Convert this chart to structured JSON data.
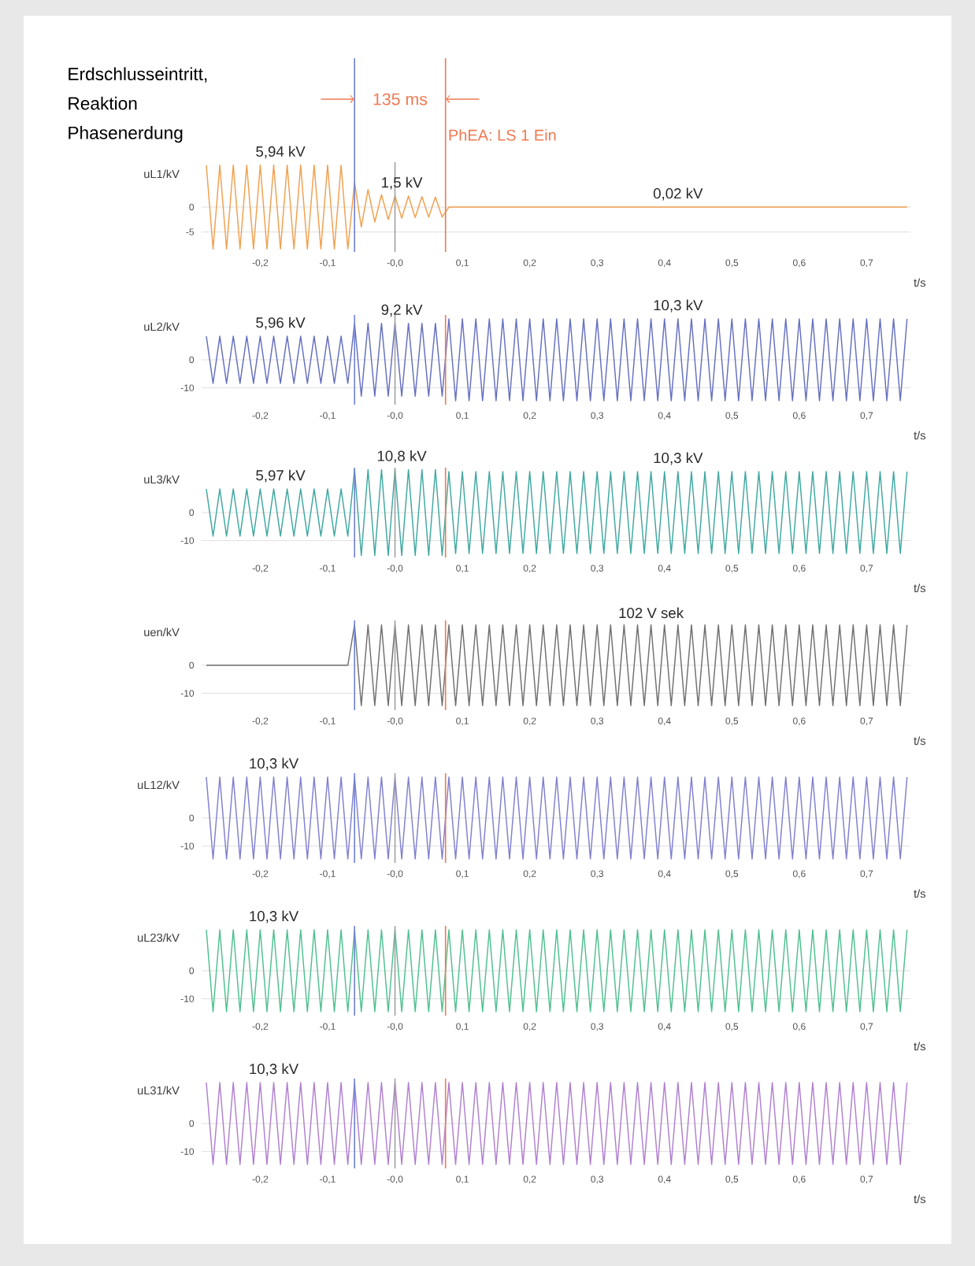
{
  "chart_data": [
    {
      "type": "line",
      "title": "Erdschlusseintritt, Reaktion Phasenerdung",
      "ylabel": "uL1/kV",
      "xlabel": "t/s",
      "xlim": [
        -0.287,
        0.765
      ],
      "ylim": [
        -9,
        9
      ],
      "yticks": [
        -5,
        0
      ],
      "grid": "y",
      "marker": "none",
      "line_style": "solid",
      "xticks": [
        {
          "value": -0.2,
          "label": "-0,2"
        },
        {
          "value": -0.1,
          "label": "-0,1"
        },
        {
          "value": 0,
          "label": "-0,0"
        },
        {
          "value": 0.1,
          "label": "0,1"
        },
        {
          "value": 0.2,
          "label": "0,2"
        },
        {
          "value": 0.3,
          "label": "0,3"
        },
        {
          "value": 0.4,
          "label": "0,4"
        },
        {
          "value": 0.5,
          "label": "0,5"
        },
        {
          "value": 0.6,
          "label": "0,6"
        },
        {
          "value": 0.7,
          "label": "0,7"
        }
      ],
      "series": [
        {
          "color": "#f0a050",
          "x": [
            -0.28,
            -0.27,
            -0.26,
            -0.25,
            -0.24,
            -0.23,
            -0.22,
            -0.21,
            -0.2,
            -0.19,
            -0.18,
            -0.17,
            -0.16,
            -0.15,
            -0.14,
            -0.13,
            -0.12,
            -0.11,
            -0.1,
            -0.09,
            -0.08,
            -0.07,
            -0.06,
            -0.05,
            -0.04,
            -0.03,
            -0.02,
            -0.01,
            0,
            0.01,
            0.02,
            0.03,
            0.04,
            0.05,
            0.06,
            0.07,
            0.08,
            0.76
          ],
          "values": [
            8.4,
            -8.4,
            8.4,
            -8.4,
            8.4,
            -8.4,
            8.4,
            -8.4,
            8.4,
            -8.4,
            8.4,
            -8.4,
            8.4,
            -8.4,
            8.4,
            -8.4,
            8.4,
            -8.4,
            8.4,
            -8.4,
            8.4,
            -8.4,
            5,
            -4,
            3.5,
            -3,
            2.5,
            -2.5,
            2.2,
            -2.2,
            2.2,
            -2.1,
            2.1,
            -2,
            2,
            -2,
            0,
            0
          ]
        }
      ],
      "ref_lines": [
        {
          "axis": "x",
          "value": -0.06,
          "color": "#7080d0"
        },
        {
          "axis": "x",
          "value": 0,
          "color": "#a0a0a0"
        },
        {
          "axis": "x",
          "value": 0.075,
          "color": "#f07850",
          "label": "PhEA: LS 1 Ein"
        }
      ],
      "annotations": [
        {
          "text": "5,94 kV",
          "x": -0.17,
          "y": 8.4
        },
        {
          "text": "1,5 kV",
          "x": 0.01,
          "y": 2.2
        },
        {
          "text": "0,02 kV",
          "x": 0.42,
          "y": 0
        },
        "135 ms"
      ]
    },
    {
      "type": "line",
      "ylabel": "uL2/kV",
      "xlabel": "t/s",
      "xlim": [
        -0.287,
        0.765
      ],
      "ylim": [
        -16,
        16
      ],
      "yticks": [
        -10,
        0
      ],
      "grid": "y",
      "marker": "none",
      "line_style": "solid",
      "xticks": [
        {
          "value": -0.2,
          "label": "-0,2"
        },
        {
          "value": -0.1,
          "label": "-0,1"
        },
        {
          "value": 0,
          "label": "-0,0"
        },
        {
          "value": 0.1,
          "label": "0,1"
        },
        {
          "value": 0.2,
          "label": "0,2"
        },
        {
          "value": 0.3,
          "label": "0,3"
        },
        {
          "value": 0.4,
          "label": "0,4"
        },
        {
          "value": 0.5,
          "label": "0,5"
        },
        {
          "value": 0.6,
          "label": "0,6"
        },
        {
          "value": 0.7,
          "label": "0,7"
        }
      ],
      "series": [
        {
          "color": "#6670c0",
          "x": [
            -0.28,
            -0.27,
            -0.26,
            -0.25,
            -0.24,
            -0.23,
            -0.22,
            -0.21,
            -0.2,
            -0.19,
            -0.18,
            -0.17,
            -0.16,
            -0.15,
            -0.14,
            -0.13,
            -0.12,
            -0.11,
            -0.1,
            -0.09,
            -0.08,
            -0.07,
            -0.06,
            -0.05,
            -0.04,
            -0.03,
            -0.02,
            -0.01,
            0,
            0.01,
            0.02,
            0.03,
            0.04,
            0.05,
            0.06,
            0.07,
            0.08,
            0.09,
            0.1,
            0.11,
            0.12,
            0.13,
            0.14,
            0.15,
            0.16,
            0.17,
            0.18,
            0.19,
            0.2,
            0.21,
            0.22,
            0.23,
            0.24,
            0.25,
            0.26,
            0.27,
            0.28,
            0.29,
            0.3,
            0.31,
            0.32,
            0.33,
            0.34,
            0.35,
            0.36,
            0.37,
            0.38,
            0.39,
            0.4,
            0.41,
            0.42,
            0.43,
            0.44,
            0.45,
            0.46,
            0.47,
            0.48,
            0.49,
            0.5,
            0.51,
            0.52,
            0.53,
            0.54,
            0.55,
            0.56,
            0.57,
            0.58,
            0.59,
            0.6,
            0.61,
            0.62,
            0.63,
            0.64,
            0.65,
            0.66,
            0.67,
            0.68,
            0.69,
            0.7,
            0.71,
            0.72,
            0.73,
            0.74,
            0.75,
            0.76
          ],
          "values": [
            8.4,
            -8.4,
            8.4,
            -8.4,
            8.4,
            -8.4,
            8.4,
            -8.4,
            8.4,
            -8.4,
            8.4,
            -8.4,
            8.4,
            -8.4,
            8.4,
            -8.4,
            8.4,
            -8.4,
            8.4,
            -8.4,
            8.4,
            -8.4,
            13,
            -13,
            13,
            -13,
            13,
            -13,
            13,
            -13,
            13,
            -13,
            13,
            -13,
            13,
            -13,
            14.6,
            -14.6,
            14.6,
            -14.6,
            14.6,
            -14.6,
            14.6,
            -14.6,
            14.6,
            -14.6,
            14.6,
            -14.6,
            14.6,
            -14.6,
            14.6,
            -14.6,
            14.6,
            -14.6,
            14.6,
            -14.6,
            14.6,
            -14.6,
            14.6,
            -14.6,
            14.6,
            -14.6,
            14.6,
            -14.6,
            14.6,
            -14.6,
            14.6,
            -14.6,
            14.6,
            -14.6,
            14.6,
            -14.6,
            14.6,
            -14.6,
            14.6,
            -14.6,
            14.6,
            -14.6,
            14.6,
            -14.6,
            14.6,
            -14.6,
            14.6,
            -14.6,
            14.6,
            -14.6,
            14.6,
            -14.6,
            14.6,
            -14.6,
            14.6,
            -14.6,
            14.6,
            -14.6,
            14.6,
            -14.6,
            14.6,
            -14.6,
            14.6,
            -14.6,
            14.6,
            -14.6,
            14.6,
            -14.6,
            14.6
          ]
        }
      ],
      "ref_lines": [
        {
          "axis": "x",
          "value": -0.06,
          "color": "#7080d0"
        },
        {
          "axis": "x",
          "value": 0,
          "color": "#a0a0a0"
        },
        {
          "axis": "x",
          "value": 0.075,
          "color": "#f07850"
        }
      ],
      "annotations": [
        {
          "text": "5,96 kV",
          "x": -0.17,
          "y": 8.4
        },
        {
          "text": "9,2 kV",
          "x": 0.01,
          "y": 13
        },
        {
          "text": "10,3 kV",
          "x": 0.42,
          "y": 14.6
        }
      ]
    },
    {
      "type": "line",
      "ylabel": "uL3/kV",
      "xlabel": "t/s",
      "xlim": [
        -0.287,
        0.765
      ],
      "ylim": [
        -16,
        16
      ],
      "yticks": [
        -10,
        0
      ],
      "grid": "y",
      "marker": "none",
      "line_style": "solid",
      "xticks": [
        {
          "value": -0.2,
          "label": "-0,2"
        },
        {
          "value": -0.1,
          "label": "-0,1"
        },
        {
          "value": 0,
          "label": "-0,0"
        },
        {
          "value": 0.1,
          "label": "0,1"
        },
        {
          "value": 0.2,
          "label": "0,2"
        },
        {
          "value": 0.3,
          "label": "0,3"
        },
        {
          "value": 0.4,
          "label": "0,4"
        },
        {
          "value": 0.5,
          "label": "0,5"
        },
        {
          "value": 0.6,
          "label": "0,6"
        },
        {
          "value": 0.7,
          "label": "0,7"
        }
      ],
      "series": [
        {
          "color": "#40a8a0",
          "x": [
            -0.28,
            -0.27,
            -0.26,
            -0.25,
            -0.24,
            -0.23,
            -0.22,
            -0.21,
            -0.2,
            -0.19,
            -0.18,
            -0.17,
            -0.16,
            -0.15,
            -0.14,
            -0.13,
            -0.12,
            -0.11,
            -0.1,
            -0.09,
            -0.08,
            -0.07,
            -0.06,
            -0.05,
            -0.04,
            -0.03,
            -0.02,
            -0.01,
            0,
            0.01,
            0.02,
            0.03,
            0.04,
            0.05,
            0.06,
            0.07,
            0.08,
            0.09,
            0.1,
            0.11,
            0.12,
            0.13,
            0.14,
            0.15,
            0.16,
            0.17,
            0.18,
            0.19,
            0.2,
            0.21,
            0.22,
            0.23,
            0.24,
            0.25,
            0.26,
            0.27,
            0.28,
            0.29,
            0.3,
            0.31,
            0.32,
            0.33,
            0.34,
            0.35,
            0.36,
            0.37,
            0.38,
            0.39,
            0.4,
            0.41,
            0.42,
            0.43,
            0.44,
            0.45,
            0.46,
            0.47,
            0.48,
            0.49,
            0.5,
            0.51,
            0.52,
            0.53,
            0.54,
            0.55,
            0.56,
            0.57,
            0.58,
            0.59,
            0.6,
            0.61,
            0.62,
            0.63,
            0.64,
            0.65,
            0.66,
            0.67,
            0.68,
            0.69,
            0.7,
            0.71,
            0.72,
            0.73,
            0.74,
            0.75,
            0.76
          ],
          "values": [
            8.4,
            -8.4,
            8.4,
            -8.4,
            8.4,
            -8.4,
            8.4,
            -8.4,
            8.4,
            -8.4,
            8.4,
            -8.4,
            8.4,
            -8.4,
            8.4,
            -8.4,
            8.4,
            -8.4,
            8.4,
            -8.4,
            8.4,
            -8.4,
            15.3,
            -15.3,
            15.3,
            -15.3,
            15.3,
            -15.3,
            15.3,
            -15.3,
            15.3,
            -15.3,
            15.3,
            -15.3,
            15.3,
            -15.3,
            14.6,
            -14.6,
            14.6,
            -14.6,
            14.6,
            -14.6,
            14.6,
            -14.6,
            14.6,
            -14.6,
            14.6,
            -14.6,
            14.6,
            -14.6,
            14.6,
            -14.6,
            14.6,
            -14.6,
            14.6,
            -14.6,
            14.6,
            -14.6,
            14.6,
            -14.6,
            14.6,
            -14.6,
            14.6,
            -14.6,
            14.6,
            -14.6,
            14.6,
            -14.6,
            14.6,
            -14.6,
            14.6,
            -14.6,
            14.6,
            -14.6,
            14.6,
            -14.6,
            14.6,
            -14.6,
            14.6,
            -14.6,
            14.6,
            -14.6,
            14.6,
            -14.6,
            14.6,
            -14.6,
            14.6,
            -14.6,
            14.6,
            -14.6,
            14.6,
            -14.6,
            14.6,
            -14.6,
            14.6,
            -14.6,
            14.6,
            -14.6,
            14.6,
            -14.6,
            14.6,
            -14.6,
            14.6,
            -14.6,
            14.6
          ]
        }
      ],
      "ref_lines": [
        {
          "axis": "x",
          "value": -0.06,
          "color": "#7080d0"
        },
        {
          "axis": "x",
          "value": 0,
          "color": "#a0a0a0"
        },
        {
          "axis": "x",
          "value": 0.075,
          "color": "#f07850"
        }
      ],
      "annotations": [
        {
          "text": "5,97 kV",
          "x": -0.17,
          "y": 8.4
        },
        {
          "text": "10,8 kV",
          "x": 0.01,
          "y": 15.3
        },
        {
          "text": "10,3 kV",
          "x": 0.42,
          "y": 14.6
        }
      ]
    },
    {
      "type": "line",
      "ylabel": "uen/kV",
      "xlabel": "t/s",
      "xlim": [
        -0.287,
        0.765
      ],
      "ylim": [
        -16,
        16
      ],
      "yticks": [
        -10,
        0
      ],
      "grid": "y",
      "marker": "none",
      "line_style": "solid",
      "xticks": [
        {
          "value": -0.2,
          "label": "-0,2"
        },
        {
          "value": -0.1,
          "label": "-0,1"
        },
        {
          "value": 0,
          "label": "-0,0"
        },
        {
          "value": 0.1,
          "label": "0,1"
        },
        {
          "value": 0.2,
          "label": "0,2"
        },
        {
          "value": 0.3,
          "label": "0,3"
        },
        {
          "value": 0.4,
          "label": "0,4"
        },
        {
          "value": 0.5,
          "label": "0,5"
        },
        {
          "value": 0.6,
          "label": "0,6"
        },
        {
          "value": 0.7,
          "label": "0,7"
        }
      ],
      "series": [
        {
          "color": "#707070",
          "x": [
            -0.28,
            -0.07,
            -0.06,
            -0.05,
            -0.04,
            -0.03,
            -0.02,
            -0.01,
            0,
            0.01,
            0.02,
            0.03,
            0.04,
            0.05,
            0.06,
            0.07,
            0.08,
            0.09,
            0.1,
            0.11,
            0.12,
            0.13,
            0.14,
            0.15,
            0.16,
            0.17,
            0.18,
            0.19,
            0.2,
            0.21,
            0.22,
            0.23,
            0.24,
            0.25,
            0.26,
            0.27,
            0.28,
            0.29,
            0.3,
            0.31,
            0.32,
            0.33,
            0.34,
            0.35,
            0.36,
            0.37,
            0.38,
            0.39,
            0.4,
            0.41,
            0.42,
            0.43,
            0.44,
            0.45,
            0.46,
            0.47,
            0.48,
            0.49,
            0.5,
            0.51,
            0.52,
            0.53,
            0.54,
            0.55,
            0.56,
            0.57,
            0.58,
            0.59,
            0.6,
            0.61,
            0.62,
            0.63,
            0.64,
            0.65,
            0.66,
            0.67,
            0.68,
            0.69,
            0.7,
            0.71,
            0.72,
            0.73,
            0.74,
            0.75,
            0.76
          ],
          "values": [
            0,
            0,
            14.4,
            -14.4,
            14.4,
            -14.4,
            14.4,
            -14.4,
            14.4,
            -14.4,
            14.4,
            -14.4,
            14.4,
            -14.4,
            14.4,
            -14.4,
            14.4,
            -14.4,
            14.4,
            -14.4,
            14.4,
            -14.4,
            14.4,
            -14.4,
            14.4,
            -14.4,
            14.4,
            -14.4,
            14.4,
            -14.4,
            14.4,
            -14.4,
            14.4,
            -14.4,
            14.4,
            -14.4,
            14.4,
            -14.4,
            14.4,
            -14.4,
            14.4,
            -14.4,
            14.4,
            -14.4,
            14.4,
            -14.4,
            14.4,
            -14.4,
            14.4,
            -14.4,
            14.4,
            -14.4,
            14.4,
            -14.4,
            14.4,
            -14.4,
            14.4,
            -14.4,
            14.4,
            -14.4,
            14.4,
            -14.4,
            14.4,
            -14.4,
            14.4,
            -14.4,
            14.4,
            -14.4,
            14.4,
            -14.4,
            14.4,
            -14.4,
            14.4,
            -14.4,
            14.4,
            -14.4,
            14.4,
            -14.4,
            14.4,
            -14.4,
            14.4,
            -14.4,
            14.4,
            -14.4,
            14.4
          ]
        }
      ],
      "ref_lines": [
        {
          "axis": "x",
          "value": -0.06,
          "color": "#7080d0"
        },
        {
          "axis": "x",
          "value": 0,
          "color": "#a0a0a0"
        },
        {
          "axis": "x",
          "value": 0.075,
          "color": "#f07850"
        }
      ],
      "annotations": [
        {
          "text": "102 V sek",
          "x": 0.38,
          "y": 14.4
        }
      ]
    },
    {
      "type": "line",
      "ylabel": "uL12/kV",
      "xlabel": "t/s",
      "xlim": [
        -0.287,
        0.765
      ],
      "ylim": [
        -16,
        16
      ],
      "yticks": [
        -10,
        0
      ],
      "grid": "y",
      "marker": "none",
      "line_style": "solid",
      "xticks": [
        {
          "value": -0.2,
          "label": "-0,2"
        },
        {
          "value": -0.1,
          "label": "-0,1"
        },
        {
          "value": 0,
          "label": "-0,0"
        },
        {
          "value": 0.1,
          "label": "0,1"
        },
        {
          "value": 0.2,
          "label": "0,2"
        },
        {
          "value": 0.3,
          "label": "0,3"
        },
        {
          "value": 0.4,
          "label": "0,4"
        },
        {
          "value": 0.5,
          "label": "0,5"
        },
        {
          "value": 0.6,
          "label": "0,6"
        },
        {
          "value": 0.7,
          "label": "0,7"
        }
      ],
      "series": [
        {
          "color": "#8080d0",
          "x": [
            -0.28,
            -0.27,
            -0.26,
            -0.25,
            -0.24,
            -0.23,
            -0.22,
            -0.21,
            -0.2,
            -0.19,
            -0.18,
            -0.17,
            -0.16,
            -0.15,
            -0.14,
            -0.13,
            -0.12,
            -0.11,
            -0.1,
            -0.09,
            -0.08,
            -0.07,
            -0.06,
            -0.05,
            -0.04,
            -0.03,
            -0.02,
            -0.01,
            0,
            0.01,
            0.02,
            0.03,
            0.04,
            0.05,
            0.06,
            0.07,
            0.08,
            0.09,
            0.1,
            0.11,
            0.12,
            0.13,
            0.14,
            0.15,
            0.16,
            0.17,
            0.18,
            0.19,
            0.2,
            0.21,
            0.22,
            0.23,
            0.24,
            0.25,
            0.26,
            0.27,
            0.28,
            0.29,
            0.3,
            0.31,
            0.32,
            0.33,
            0.34,
            0.35,
            0.36,
            0.37,
            0.38,
            0.39,
            0.4,
            0.41,
            0.42,
            0.43,
            0.44,
            0.45,
            0.46,
            0.47,
            0.48,
            0.49,
            0.5,
            0.51,
            0.52,
            0.53,
            0.54,
            0.55,
            0.56,
            0.57,
            0.58,
            0.59,
            0.6,
            0.61,
            0.62,
            0.63,
            0.64,
            0.65,
            0.66,
            0.67,
            0.68,
            0.69,
            0.7,
            0.71,
            0.72,
            0.73,
            0.74,
            0.75,
            0.76
          ],
          "values": [
            14.6,
            -14.6,
            14.6,
            -14.6,
            14.6,
            -14.6,
            14.6,
            -14.6,
            14.6,
            -14.6,
            14.6,
            -14.6,
            14.6,
            -14.6,
            14.6,
            -14.6,
            14.6,
            -14.6,
            14.6,
            -14.6,
            14.6,
            -14.6,
            14.6,
            -14.6,
            14.6,
            -14.6,
            14.6,
            -14.6,
            14.6,
            -14.6,
            14.6,
            -14.6,
            14.6,
            -14.6,
            14.6,
            -14.6,
            14.6,
            -14.6,
            14.6,
            -14.6,
            14.6,
            -14.6,
            14.6,
            -14.6,
            14.6,
            -14.6,
            14.6,
            -14.6,
            14.6,
            -14.6,
            14.6,
            -14.6,
            14.6,
            -14.6,
            14.6,
            -14.6,
            14.6,
            -14.6,
            14.6,
            -14.6,
            14.6,
            -14.6,
            14.6,
            -14.6,
            14.6,
            -14.6,
            14.6,
            -14.6,
            14.6,
            -14.6,
            14.6,
            -14.6,
            14.6,
            -14.6,
            14.6,
            -14.6,
            14.6,
            -14.6,
            14.6,
            -14.6,
            14.6,
            -14.6,
            14.6,
            -14.6,
            14.6,
            -14.6,
            14.6,
            -14.6,
            14.6,
            -14.6,
            14.6,
            -14.6,
            14.6,
            -14.6,
            14.6,
            -14.6,
            14.6,
            -14.6,
            14.6,
            -14.6,
            14.6,
            -14.6,
            14.6,
            -14.6,
            14.6
          ]
        }
      ],
      "ref_lines": [
        {
          "axis": "x",
          "value": -0.06,
          "color": "#7080d0"
        },
        {
          "axis": "x",
          "value": 0,
          "color": "#a0a0a0"
        },
        {
          "axis": "x",
          "value": 0.075,
          "color": "#f07850"
        }
      ],
      "annotations": [
        {
          "text": "10,3 kV",
          "x": -0.18,
          "y": 14.6
        }
      ]
    },
    {
      "type": "line",
      "ylabel": "uL23/kV",
      "xlabel": "t/s",
      "xlim": [
        -0.287,
        0.765
      ],
      "ylim": [
        -16,
        16
      ],
      "yticks": [
        -10,
        0
      ],
      "grid": "y",
      "marker": "none",
      "line_style": "solid",
      "xticks": [
        {
          "value": -0.2,
          "label": "-0,2"
        },
        {
          "value": -0.1,
          "label": "-0,1"
        },
        {
          "value": 0,
          "label": "-0,0"
        },
        {
          "value": 0.1,
          "label": "0,1"
        },
        {
          "value": 0.2,
          "label": "0,2"
        },
        {
          "value": 0.3,
          "label": "0,3"
        },
        {
          "value": 0.4,
          "label": "0,4"
        },
        {
          "value": 0.5,
          "label": "0,5"
        },
        {
          "value": 0.6,
          "label": "0,6"
        },
        {
          "value": 0.7,
          "label": "0,7"
        }
      ],
      "series": [
        {
          "color": "#50c090",
          "x": [
            -0.28,
            -0.27,
            -0.26,
            -0.25,
            -0.24,
            -0.23,
            -0.22,
            -0.21,
            -0.2,
            -0.19,
            -0.18,
            -0.17,
            -0.16,
            -0.15,
            -0.14,
            -0.13,
            -0.12,
            -0.11,
            -0.1,
            -0.09,
            -0.08,
            -0.07,
            -0.06,
            -0.05,
            -0.04,
            -0.03,
            -0.02,
            -0.01,
            0,
            0.01,
            0.02,
            0.03,
            0.04,
            0.05,
            0.06,
            0.07,
            0.08,
            0.09,
            0.1,
            0.11,
            0.12,
            0.13,
            0.14,
            0.15,
            0.16,
            0.17,
            0.18,
            0.19,
            0.2,
            0.21,
            0.22,
            0.23,
            0.24,
            0.25,
            0.26,
            0.27,
            0.28,
            0.29,
            0.3,
            0.31,
            0.32,
            0.33,
            0.34,
            0.35,
            0.36,
            0.37,
            0.38,
            0.39,
            0.4,
            0.41,
            0.42,
            0.43,
            0.44,
            0.45,
            0.46,
            0.47,
            0.48,
            0.49,
            0.5,
            0.51,
            0.52,
            0.53,
            0.54,
            0.55,
            0.56,
            0.57,
            0.58,
            0.59,
            0.6,
            0.61,
            0.62,
            0.63,
            0.64,
            0.65,
            0.66,
            0.67,
            0.68,
            0.69,
            0.7,
            0.71,
            0.72,
            0.73,
            0.74,
            0.75,
            0.76
          ],
          "values": [
            14.6,
            -14.6,
            14.6,
            -14.6,
            14.6,
            -14.6,
            14.6,
            -14.6,
            14.6,
            -14.6,
            14.6,
            -14.6,
            14.6,
            -14.6,
            14.6,
            -14.6,
            14.6,
            -14.6,
            14.6,
            -14.6,
            14.6,
            -14.6,
            14.6,
            -14.6,
            14.6,
            -14.6,
            14.6,
            -14.6,
            14.6,
            -14.6,
            14.6,
            -14.6,
            14.6,
            -14.6,
            14.6,
            -14.6,
            14.6,
            -14.6,
            14.6,
            -14.6,
            14.6,
            -14.6,
            14.6,
            -14.6,
            14.6,
            -14.6,
            14.6,
            -14.6,
            14.6,
            -14.6,
            14.6,
            -14.6,
            14.6,
            -14.6,
            14.6,
            -14.6,
            14.6,
            -14.6,
            14.6,
            -14.6,
            14.6,
            -14.6,
            14.6,
            -14.6,
            14.6,
            -14.6,
            14.6,
            -14.6,
            14.6,
            -14.6,
            14.6,
            -14.6,
            14.6,
            -14.6,
            14.6,
            -14.6,
            14.6,
            -14.6,
            14.6,
            -14.6,
            14.6,
            -14.6,
            14.6,
            -14.6,
            14.6,
            -14.6,
            14.6,
            -14.6,
            14.6,
            -14.6,
            14.6,
            -14.6,
            14.6,
            -14.6,
            14.6,
            -14.6,
            14.6,
            -14.6,
            14.6,
            -14.6,
            14.6,
            -14.6,
            14.6,
            -14.6,
            14.6
          ]
        }
      ],
      "ref_lines": [
        {
          "axis": "x",
          "value": -0.06,
          "color": "#7080d0"
        },
        {
          "axis": "x",
          "value": 0,
          "color": "#a0a0a0"
        },
        {
          "axis": "x",
          "value": 0.075,
          "color": "#f07850"
        }
      ],
      "annotations": [
        {
          "text": "10,3 kV",
          "x": -0.18,
          "y": 14.6
        }
      ]
    },
    {
      "type": "line",
      "ylabel": "uL31/kV",
      "xlabel": "t/s",
      "xlim": [
        -0.287,
        0.765
      ],
      "ylim": [
        -16,
        16
      ],
      "yticks": [
        -10,
        0
      ],
      "grid": "y",
      "marker": "none",
      "line_style": "solid",
      "xticks": [
        {
          "value": -0.2,
          "label": "-0,2"
        },
        {
          "value": -0.1,
          "label": "-0,1"
        },
        {
          "value": 0,
          "label": "-0,0"
        },
        {
          "value": 0.1,
          "label": "0,1"
        },
        {
          "value": 0.2,
          "label": "0,2"
        },
        {
          "value": 0.3,
          "label": "0,3"
        },
        {
          "value": 0.4,
          "label": "0,4"
        },
        {
          "value": 0.5,
          "label": "0,5"
        },
        {
          "value": 0.6,
          "label": "0,6"
        },
        {
          "value": 0.7,
          "label": "0,7"
        }
      ],
      "series": [
        {
          "color": "#b080d0",
          "x": [
            -0.28,
            -0.27,
            -0.26,
            -0.25,
            -0.24,
            -0.23,
            -0.22,
            -0.21,
            -0.2,
            -0.19,
            -0.18,
            -0.17,
            -0.16,
            -0.15,
            -0.14,
            -0.13,
            -0.12,
            -0.11,
            -0.1,
            -0.09,
            -0.08,
            -0.07,
            -0.06,
            -0.05,
            -0.04,
            -0.03,
            -0.02,
            -0.01,
            0,
            0.01,
            0.02,
            0.03,
            0.04,
            0.05,
            0.06,
            0.07,
            0.08,
            0.09,
            0.1,
            0.11,
            0.12,
            0.13,
            0.14,
            0.15,
            0.16,
            0.17,
            0.18,
            0.19,
            0.2,
            0.21,
            0.22,
            0.23,
            0.24,
            0.25,
            0.26,
            0.27,
            0.28,
            0.29,
            0.3,
            0.31,
            0.32,
            0.33,
            0.34,
            0.35,
            0.36,
            0.37,
            0.38,
            0.39,
            0.4,
            0.41,
            0.42,
            0.43,
            0.44,
            0.45,
            0.46,
            0.47,
            0.48,
            0.49,
            0.5,
            0.51,
            0.52,
            0.53,
            0.54,
            0.55,
            0.56,
            0.57,
            0.58,
            0.59,
            0.6,
            0.61,
            0.62,
            0.63,
            0.64,
            0.65,
            0.66,
            0.67,
            0.68,
            0.69,
            0.7,
            0.71,
            0.72,
            0.73,
            0.74,
            0.75,
            0.76
          ],
          "values": [
            14.6,
            -14.6,
            14.6,
            -14.6,
            14.6,
            -14.6,
            14.6,
            -14.6,
            14.6,
            -14.6,
            14.6,
            -14.6,
            14.6,
            -14.6,
            14.6,
            -14.6,
            14.6,
            -14.6,
            14.6,
            -14.6,
            14.6,
            -14.6,
            14.6,
            -14.6,
            14.6,
            -14.6,
            14.6,
            -14.6,
            14.6,
            -14.6,
            14.6,
            -14.6,
            14.6,
            -14.6,
            14.6,
            -14.6,
            14.6,
            -14.6,
            14.6,
            -14.6,
            14.6,
            -14.6,
            14.6,
            -14.6,
            14.6,
            -14.6,
            14.6,
            -14.6,
            14.6,
            -14.6,
            14.6,
            -14.6,
            14.6,
            -14.6,
            14.6,
            -14.6,
            14.6,
            -14.6,
            14.6,
            -14.6,
            14.6,
            -14.6,
            14.6,
            -14.6,
            14.6,
            -14.6,
            14.6,
            -14.6,
            14.6,
            -14.6,
            14.6,
            -14.6,
            14.6,
            -14.6,
            14.6,
            -14.6,
            14.6,
            -14.6,
            14.6,
            -14.6,
            14.6,
            -14.6,
            14.6,
            -14.6,
            14.6,
            -14.6,
            14.6,
            -14.6,
            14.6,
            -14.6,
            14.6,
            -14.6,
            14.6,
            -14.6,
            14.6,
            -14.6,
            14.6,
            -14.6,
            14.6,
            -14.6,
            14.6,
            -14.6,
            14.6,
            -14.6,
            14.6
          ]
        }
      ],
      "ref_lines": [
        {
          "axis": "x",
          "value": -0.06,
          "color": "#7080d0"
        },
        {
          "axis": "x",
          "value": 0,
          "color": "#a0a0a0"
        },
        {
          "axis": "x",
          "value": 0.075,
          "color": "#f07850"
        }
      ],
      "annotations": [
        {
          "text": "10,3 kV",
          "x": -0.18,
          "y": 14.6
        }
      ]
    }
  ]
}
